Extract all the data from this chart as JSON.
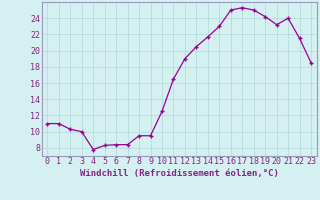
{
  "xlabel": "Windchill (Refroidissement éolien,°C)",
  "line_color": "#990099",
  "marker_color": "#990099",
  "bg_color": "#d4f0f0",
  "grid_color": "#b0d8d8",
  "axis_color": "#9999bb",
  "text_color": "#882288",
  "ylim": [
    7,
    26
  ],
  "xlim": [
    -0.5,
    23.5
  ],
  "yticks": [
    8,
    10,
    12,
    14,
    16,
    18,
    20,
    22,
    24
  ],
  "xticks": [
    0,
    1,
    2,
    3,
    4,
    5,
    6,
    7,
    8,
    9,
    10,
    11,
    12,
    13,
    14,
    15,
    16,
    17,
    18,
    19,
    20,
    21,
    22,
    23
  ],
  "data_points": [
    [
      0,
      11.0
    ],
    [
      1,
      11.0
    ],
    [
      2,
      10.3
    ],
    [
      3,
      10.0
    ],
    [
      4,
      7.8
    ],
    [
      5,
      8.3
    ],
    [
      6,
      8.4
    ],
    [
      7,
      8.4
    ],
    [
      8,
      9.5
    ],
    [
      9,
      9.5
    ],
    [
      10,
      12.5
    ],
    [
      11,
      16.5
    ],
    [
      12,
      19.0
    ],
    [
      13,
      20.5
    ],
    [
      14,
      21.7
    ],
    [
      15,
      23.0
    ],
    [
      16,
      25.0
    ],
    [
      17,
      25.3
    ],
    [
      18,
      25.0
    ],
    [
      19,
      24.2
    ],
    [
      20,
      23.2
    ],
    [
      21,
      24.0
    ],
    [
      22,
      21.5
    ],
    [
      23,
      18.5
    ]
  ],
  "tick_fontsize": 6,
  "xlabel_fontsize": 6.5
}
